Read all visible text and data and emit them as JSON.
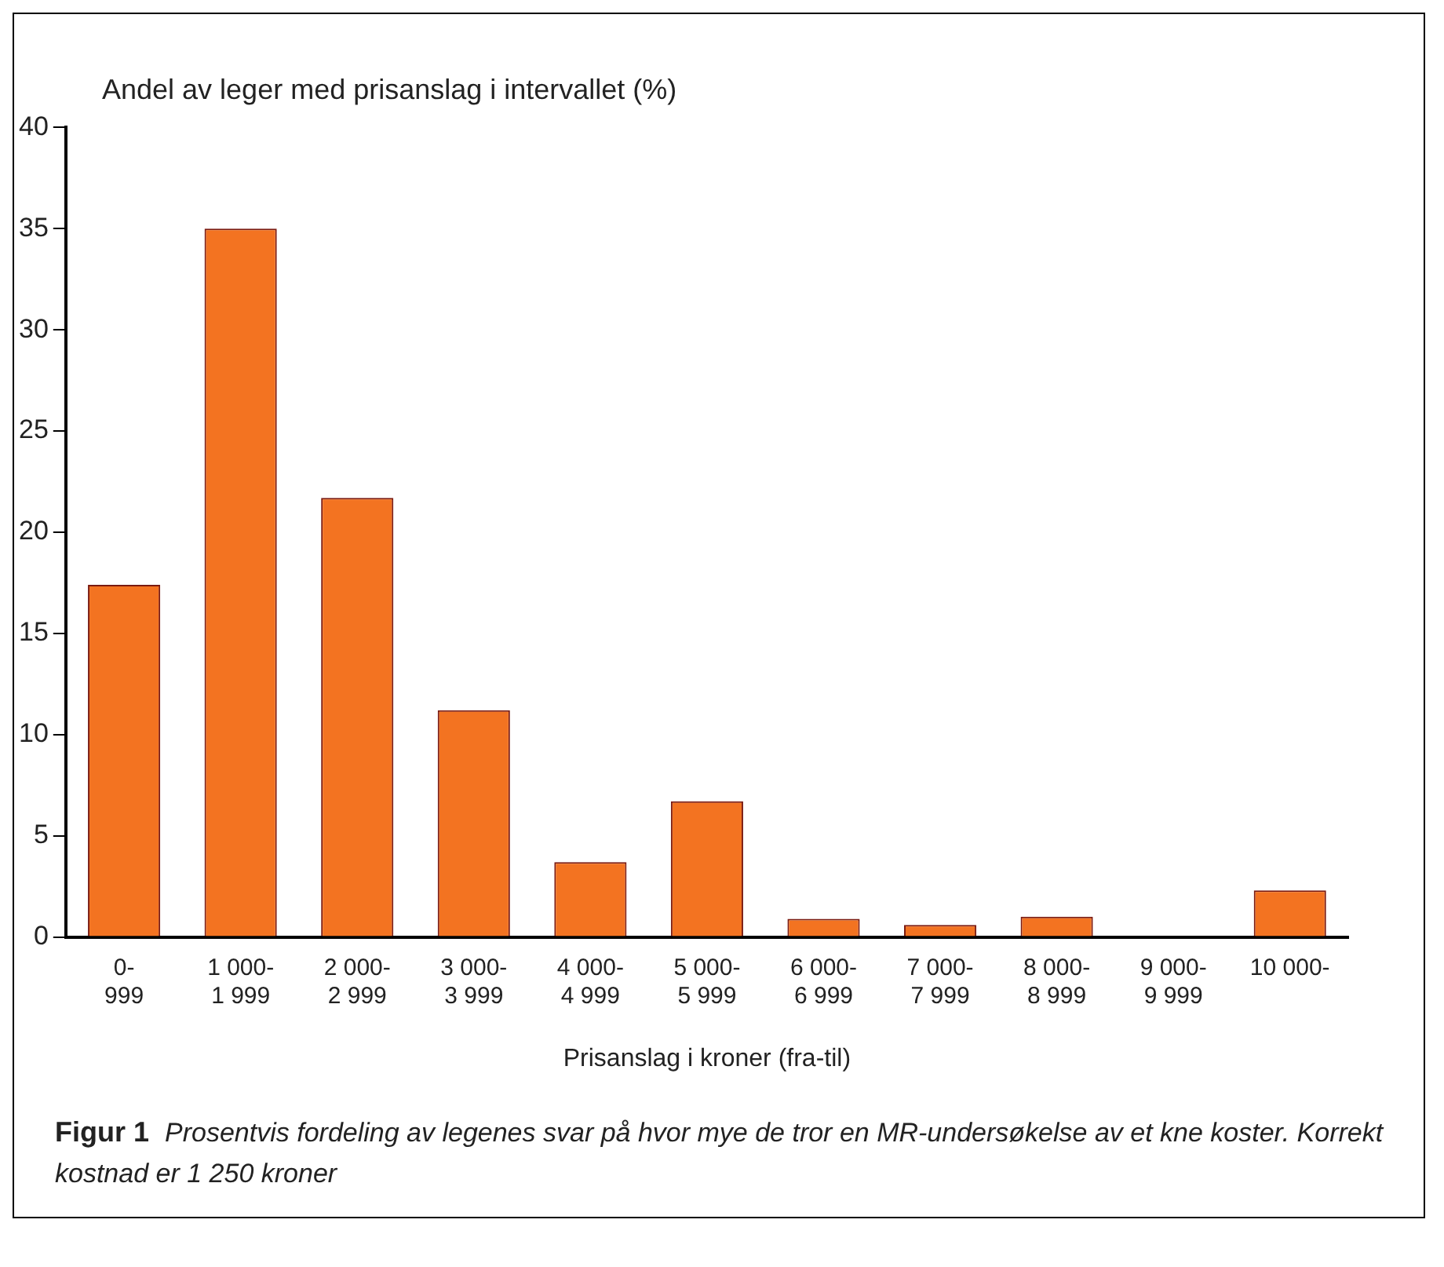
{
  "chart_data": {
    "type": "bar",
    "ylabel": "Andel av leger med prisanslag i intervallet (%)",
    "xlabel": "Prisanslag i kroner (fra-til)",
    "categories": [
      "0-999",
      "1 000-1 999",
      "2 000-2 999",
      "3 000-3 999",
      "4 000-4 999",
      "5 000-5 999",
      "6 000-6 999",
      "7 000-7 999",
      "8 000-8 999",
      "9 000-9 999",
      "10 000-"
    ],
    "values": [
      17.4,
      35.0,
      21.7,
      11.2,
      3.7,
      6.7,
      0.9,
      0.6,
      1.0,
      0,
      2.3
    ],
    "color": "#f37321",
    "ylim": [
      0,
      40
    ],
    "yticks": [
      0,
      5,
      10,
      15,
      20,
      25,
      30,
      35,
      40
    ],
    "grid": false,
    "legend": false,
    "annotations": [
      "Figur 1",
      "Prosentvis fordeling av legenes svar på hvor mye de tror en MR-undersøkelse av et kne koster. Korrekt kostnad er 1 250 kroner"
    ]
  }
}
